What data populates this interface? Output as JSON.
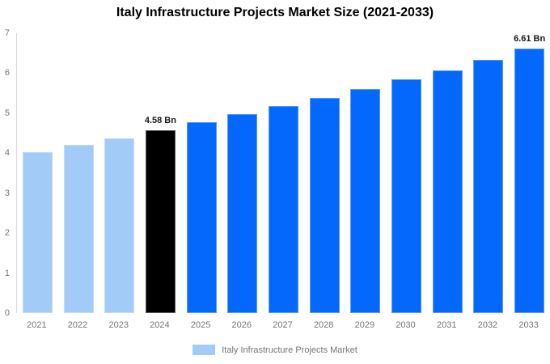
{
  "title": "Italy Infrastructure Projects Market Size (2021-2033)",
  "chart_data": {
    "type": "bar",
    "title": "Italy Infrastructure Projects Market Size (2021-2033)",
    "categories": [
      "2021",
      "2022",
      "2023",
      "2024",
      "2025",
      "2026",
      "2027",
      "2028",
      "2029",
      "2030",
      "2031",
      "2032",
      "2033"
    ],
    "values": [
      4.02,
      4.2,
      4.38,
      4.58,
      4.77,
      4.97,
      5.17,
      5.39,
      5.61,
      5.84,
      6.07,
      6.33,
      6.61
    ],
    "bar_colors": [
      "#a2cbf8",
      "#a2cbf8",
      "#a2cbf8",
      "#000000",
      "#0568fd",
      "#0568fd",
      "#0568fd",
      "#0568fd",
      "#0568fd",
      "#0568fd",
      "#0568fd",
      "#0568fd",
      "#0568fd"
    ],
    "annotations": [
      {
        "index": 3,
        "text": "4.58 Bn"
      },
      {
        "index": 12,
        "text": "6.61 Bn"
      }
    ],
    "xlabel": "",
    "ylabel": "",
    "ylim": [
      0,
      7
    ],
    "yticks": [
      "0",
      "1",
      "2",
      "3",
      "4",
      "5",
      "6",
      "7"
    ],
    "grid": false,
    "legend": {
      "position": "bottom",
      "entries": [
        {
          "label": "Italy Infrastructure Projects Market",
          "color": "#a2cbf8"
        }
      ]
    }
  },
  "colors": {
    "axis_line": "#d9d9d9",
    "axis_text": "#757575",
    "value_label_text": "#1a1a1a",
    "title_text": "#000000",
    "background": "#ffffff"
  }
}
